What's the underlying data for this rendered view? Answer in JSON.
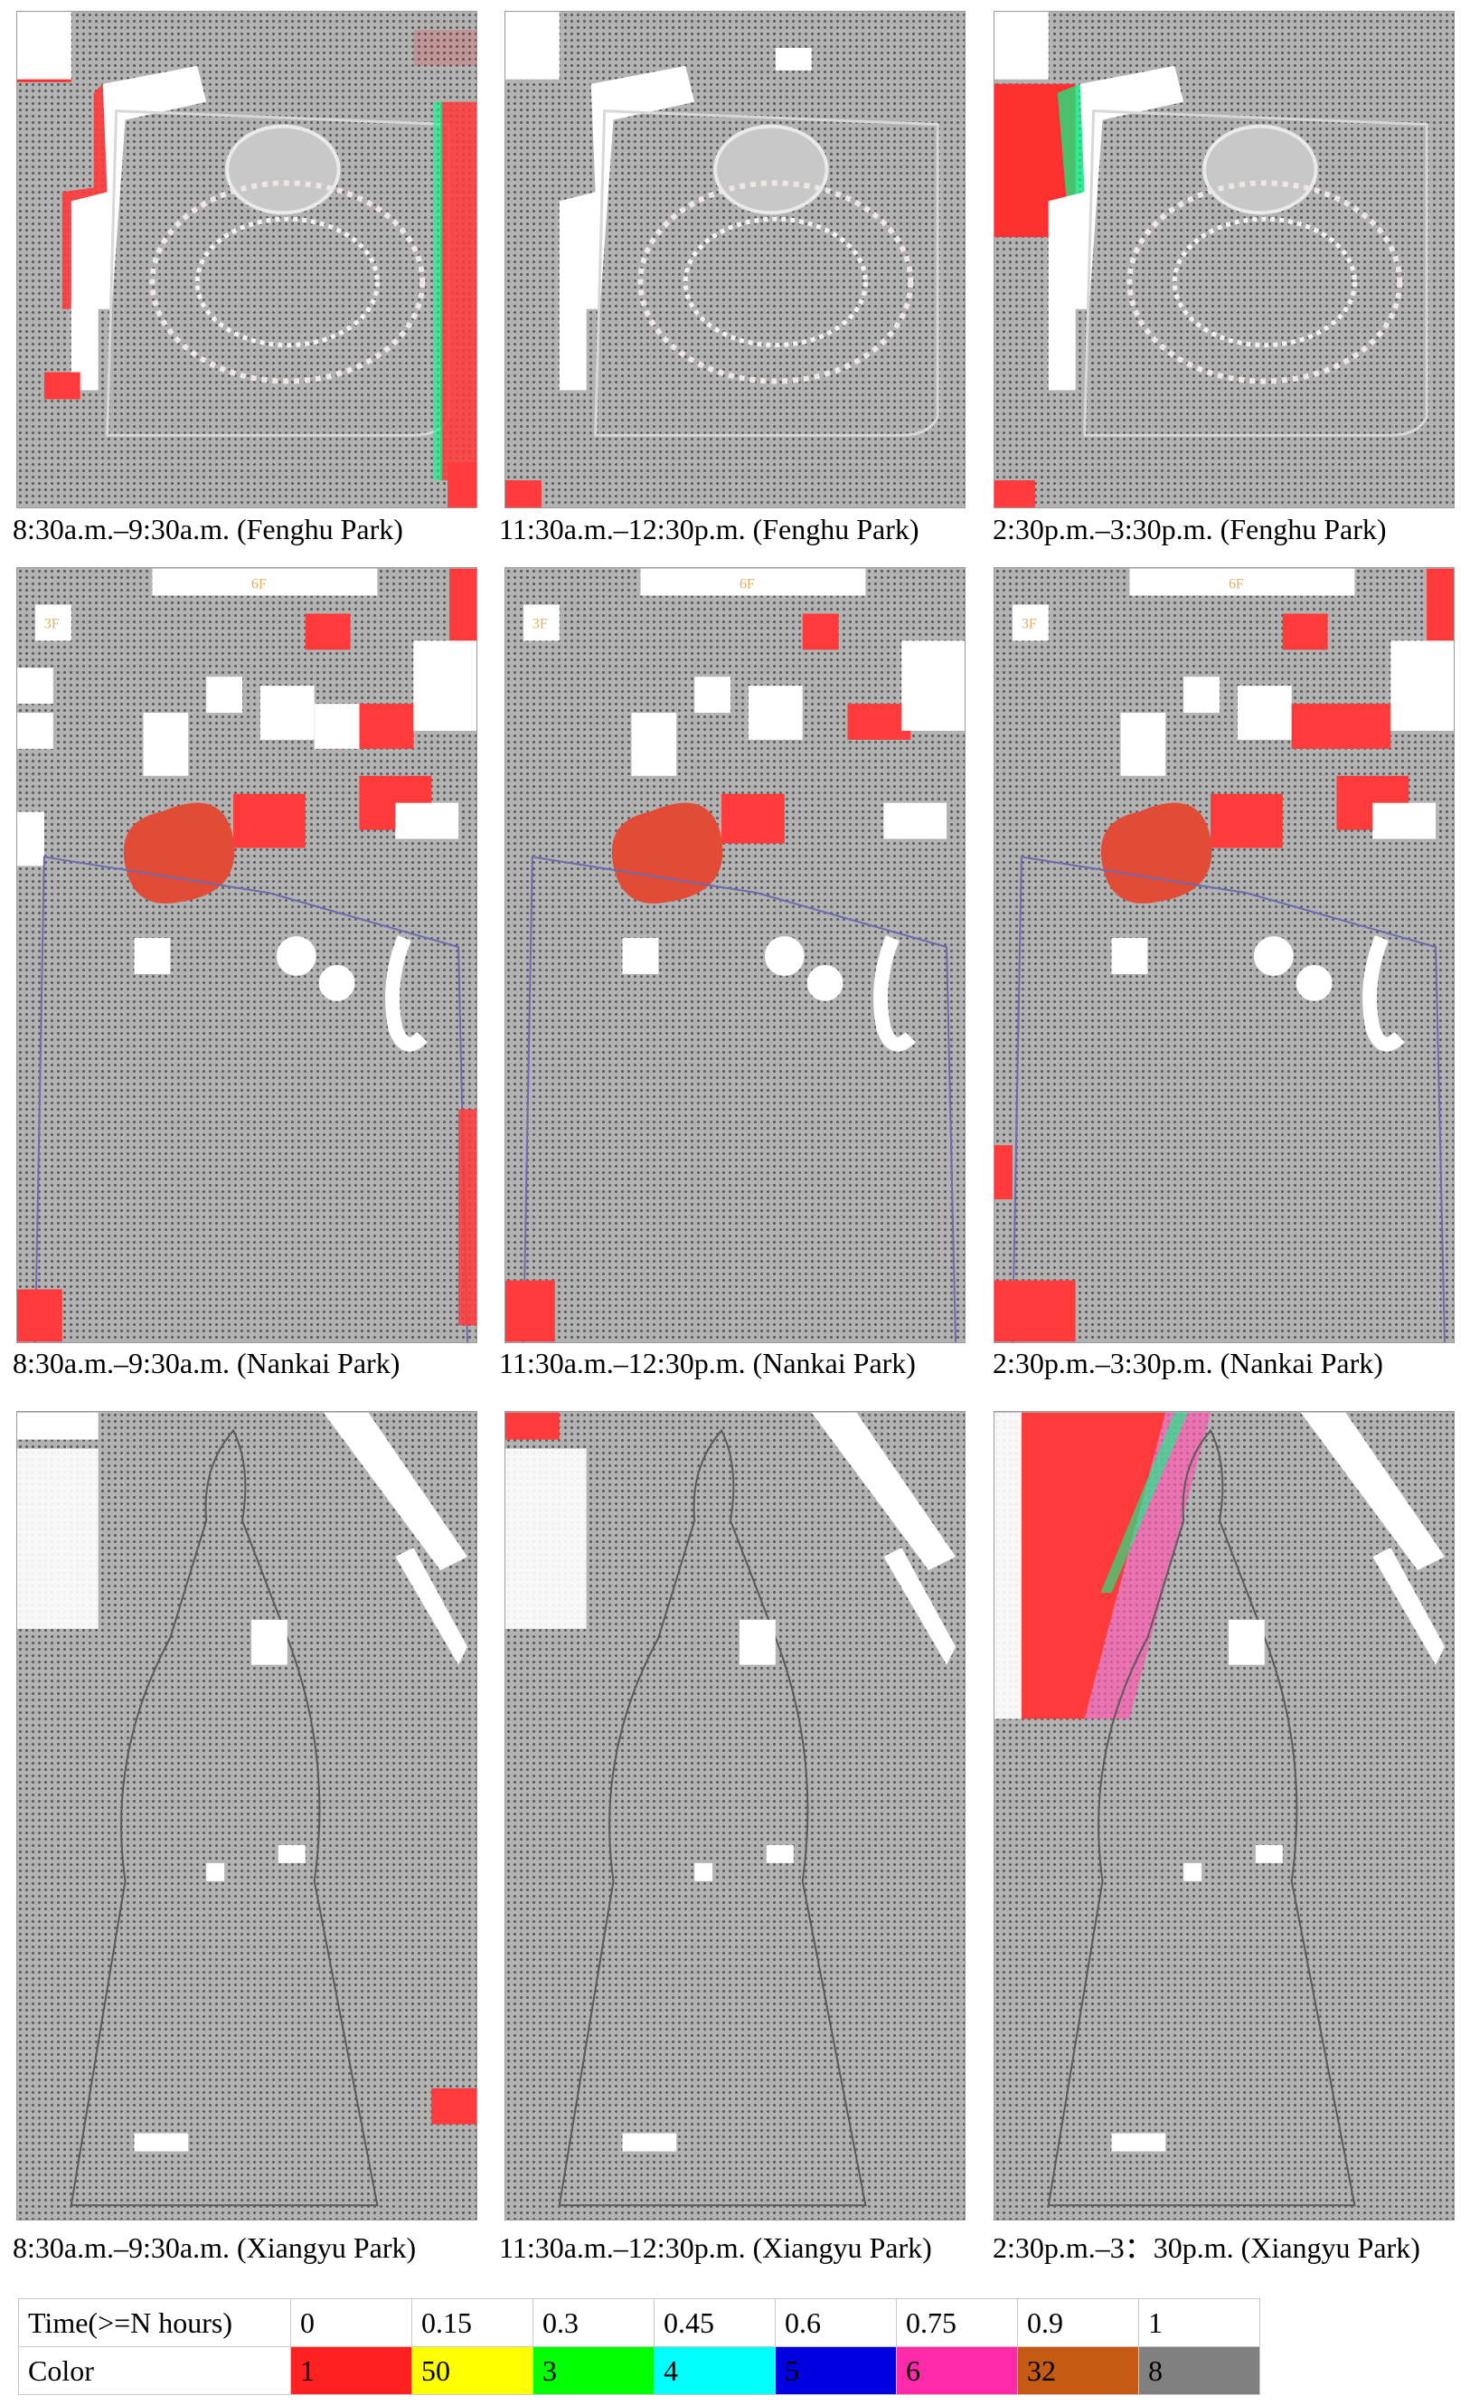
{
  "figure": {
    "rows": [
      {
        "panels": [
          {
            "caption": "8:30a.m.–9:30a.m. (Fenghu Park)"
          },
          {
            "caption": "11:30a.m.–12:30p.m. (Fenghu Park)"
          },
          {
            "caption": "2:30p.m.–3:30p.m. (Fenghu Park)"
          }
        ]
      },
      {
        "panels": [
          {
            "caption": "8:30a.m.–9:30a.m. (Nankai Park)"
          },
          {
            "caption": "11:30a.m.–12:30p.m. (Nankai Park)"
          },
          {
            "caption": "2:30p.m.–3:30p.m. (Nankai Park)"
          }
        ]
      },
      {
        "panels": [
          {
            "caption": "8:30a.m.–9:30a.m. (Xiangyu Park)"
          },
          {
            "caption": "11:30a.m.–12:30p.m. (Xiangyu Park)"
          },
          {
            "caption": "2:30p.m.–3：30p.m. (Xiangyu Park)"
          }
        ]
      }
    ],
    "building_floor_label": "6F",
    "building_floor_label_3f": "3F"
  },
  "legend": {
    "header_time": "Time(>=N hours)",
    "header_color": "Color",
    "entries": [
      {
        "time": "0",
        "code": "1",
        "color": "#ff2020"
      },
      {
        "time": "0.15",
        "code": "50",
        "color": "#ffff00"
      },
      {
        "time": "0.3",
        "code": "3",
        "color": "#00ff00"
      },
      {
        "time": "0.45",
        "code": "4",
        "color": "#00ffff"
      },
      {
        "time": "0.6",
        "code": "5",
        "color": "#0000e0"
      },
      {
        "time": "0.75",
        "code": "6",
        "color": "#ff2aa8"
      },
      {
        "time": "0.9",
        "code": "32",
        "color": "#c45a14"
      },
      {
        "time": "1",
        "code": "8",
        "color": "#808080"
      }
    ]
  }
}
